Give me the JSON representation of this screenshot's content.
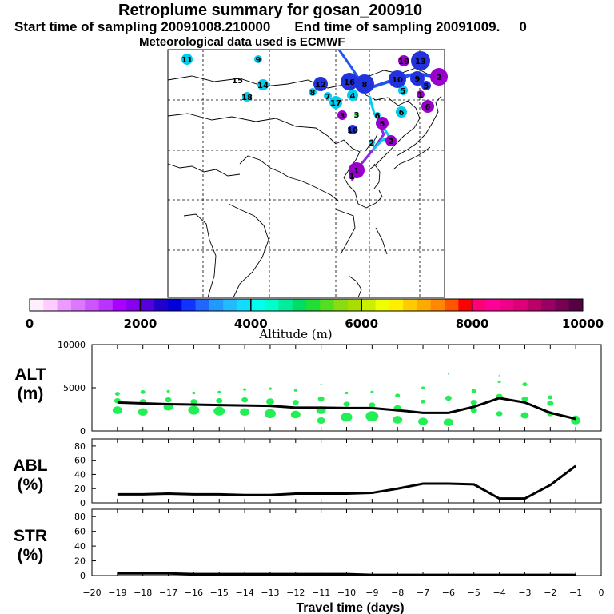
{
  "header": {
    "title": "Retroplume summary for gosan_200910",
    "start_label": "Start time of sampling 20091008.210000",
    "end_label": "End time of sampling 20091009.",
    "end_suffix": "0",
    "met_label": "Meteorological data used is ECMWF"
  },
  "map": {
    "cluster_labels": [
      "11",
      "9",
      "15",
      "14",
      "18",
      "12",
      "16",
      "8",
      "7",
      "17",
      "4",
      "3",
      "3",
      "6",
      "10",
      "2",
      "5",
      "1",
      "2",
      "5",
      "6",
      "13",
      "19",
      "10",
      "9",
      "5",
      "1",
      "6",
      "2",
      "8",
      "1"
    ],
    "colors": {
      "low": "#ee88ff",
      "mid_blue": "#2233dd",
      "cyan": "#00ccee",
      "green": "#33ee66",
      "violet": "#9900cc"
    }
  },
  "colorbar": {
    "xlabel": "Altitude (m)",
    "ticks": [
      "0",
      "2000",
      "4000",
      "6000",
      "8000",
      "10000"
    ],
    "colors": [
      "#ffeeff",
      "#ffccff",
      "#ee99ff",
      "#dd77ff",
      "#cc55ff",
      "#bb33ff",
      "#aa00ff",
      "#8800ee",
      "#5500dd",
      "#2200cc",
      "#0000dd",
      "#1133ff",
      "#2266ff",
      "#2299ff",
      "#22bbff",
      "#11ddff",
      "#00ffee",
      "#00ffcc",
      "#00ee99",
      "#00dd66",
      "#22dd33",
      "#55dd22",
      "#88dd11",
      "#aadd00",
      "#ccee00",
      "#eeff00",
      "#ffee00",
      "#ffcc00",
      "#ffaa00",
      "#ff8800",
      "#ff5500",
      "#ff0000",
      "#ff0077",
      "#ff0099",
      "#ee0088",
      "#dd0077",
      "#bb0066",
      "#990066",
      "#770055",
      "#550044"
    ]
  },
  "chart_data": [
    {
      "type": "line",
      "ylabel": "ALT",
      "yunit": "(m)",
      "ylim": [
        0,
        10000
      ],
      "yticks": [
        "0",
        "5000",
        "10000"
      ],
      "x": [
        -19,
        -18,
        -17,
        -16,
        -15,
        -14,
        -13,
        -12,
        -11,
        -10,
        -9,
        -8,
        -7,
        -6,
        -5,
        -4,
        -3,
        -2,
        -1
      ],
      "series": [
        {
          "name": "mean altitude",
          "values": [
            3300,
            3200,
            3100,
            3050,
            3000,
            2950,
            2900,
            2700,
            2700,
            2650,
            2650,
            2400,
            2100,
            2100,
            2800,
            3800,
            3300,
            2100,
            1400
          ]
        }
      ],
      "scatter_points": [
        {
          "x": -19,
          "y": 2400,
          "s": 6
        },
        {
          "x": -19,
          "y": 3500,
          "s": 4
        },
        {
          "x": -19,
          "y": 4300,
          "s": 3
        },
        {
          "x": -18,
          "y": 2200,
          "s": 6
        },
        {
          "x": -18,
          "y": 3400,
          "s": 4
        },
        {
          "x": -18,
          "y": 4500,
          "s": 3
        },
        {
          "x": -17,
          "y": 2800,
          "s": 6
        },
        {
          "x": -17,
          "y": 3600,
          "s": 4
        },
        {
          "x": -17,
          "y": 4600,
          "s": 2
        },
        {
          "x": -16,
          "y": 2400,
          "s": 7
        },
        {
          "x": -16,
          "y": 3400,
          "s": 4
        },
        {
          "x": -16,
          "y": 4400,
          "s": 2
        },
        {
          "x": -15,
          "y": 2300,
          "s": 7
        },
        {
          "x": -15,
          "y": 3500,
          "s": 4
        },
        {
          "x": -15,
          "y": 4500,
          "s": 2
        },
        {
          "x": -14,
          "y": 2200,
          "s": 6
        },
        {
          "x": -14,
          "y": 3600,
          "s": 4
        },
        {
          "x": -14,
          "y": 4800,
          "s": 2
        },
        {
          "x": -13,
          "y": 2000,
          "s": 7
        },
        {
          "x": -13,
          "y": 3400,
          "s": 5
        },
        {
          "x": -13,
          "y": 4900,
          "s": 2
        },
        {
          "x": -12,
          "y": 1900,
          "s": 6
        },
        {
          "x": -12,
          "y": 3300,
          "s": 4
        },
        {
          "x": -12,
          "y": 4700,
          "s": 2
        },
        {
          "x": -11,
          "y": 1200,
          "s": 5
        },
        {
          "x": -11,
          "y": 2400,
          "s": 6
        },
        {
          "x": -11,
          "y": 3700,
          "s": 4
        },
        {
          "x": -11,
          "y": 5400,
          "s": 1
        },
        {
          "x": -10,
          "y": 1600,
          "s": 7
        },
        {
          "x": -10,
          "y": 3100,
          "s": 4
        },
        {
          "x": -10,
          "y": 4400,
          "s": 2
        },
        {
          "x": -9,
          "y": 1700,
          "s": 8
        },
        {
          "x": -9,
          "y": 3000,
          "s": 4
        },
        {
          "x": -9,
          "y": 4500,
          "s": 2
        },
        {
          "x": -8,
          "y": 1300,
          "s": 6
        },
        {
          "x": -8,
          "y": 2600,
          "s": 5
        },
        {
          "x": -8,
          "y": 4100,
          "s": 3
        },
        {
          "x": -7,
          "y": 1100,
          "s": 6
        },
        {
          "x": -7,
          "y": 3400,
          "s": 3
        },
        {
          "x": -7,
          "y": 5000,
          "s": 2
        },
        {
          "x": -6,
          "y": 1000,
          "s": 6
        },
        {
          "x": -6,
          "y": 3800,
          "s": 4
        },
        {
          "x": -6,
          "y": 6600,
          "s": 1
        },
        {
          "x": -5,
          "y": 2400,
          "s": 4
        },
        {
          "x": -5,
          "y": 3300,
          "s": 4
        },
        {
          "x": -5,
          "y": 4600,
          "s": 3
        },
        {
          "x": -4,
          "y": 2000,
          "s": 4
        },
        {
          "x": -4,
          "y": 4000,
          "s": 4
        },
        {
          "x": -4,
          "y": 5700,
          "s": 2
        },
        {
          "x": -4,
          "y": 6400,
          "s": 1
        },
        {
          "x": -3,
          "y": 1800,
          "s": 5
        },
        {
          "x": -3,
          "y": 3700,
          "s": 4
        },
        {
          "x": -3,
          "y": 5400,
          "s": 3
        },
        {
          "x": -2,
          "y": 2000,
          "s": 4
        },
        {
          "x": -2,
          "y": 3200,
          "s": 4
        },
        {
          "x": -2,
          "y": 3900,
          "s": 3
        },
        {
          "x": -1,
          "y": 1200,
          "s": 6
        },
        {
          "x": -1,
          "y": 1500,
          "s": 4
        }
      ]
    },
    {
      "type": "line",
      "ylabel": "ABL",
      "yunit": "(%)",
      "ylim": [
        0,
        90
      ],
      "yticks": [
        "0",
        "20",
        "40",
        "60",
        "80"
      ],
      "x": [
        -19,
        -18,
        -17,
        -16,
        -15,
        -14,
        -13,
        -12,
        -11,
        -10,
        -9,
        -8,
        -7,
        -6,
        -5,
        -4,
        -3,
        -2,
        -1
      ],
      "series": [
        {
          "name": "ABL fraction",
          "values": [
            12,
            12,
            13,
            12,
            12,
            11,
            11,
            13,
            13,
            13,
            14,
            20,
            27,
            27,
            26,
            6,
            6,
            25,
            52
          ]
        }
      ]
    },
    {
      "type": "line",
      "ylabel": "STR",
      "yunit": "(%)",
      "ylim": [
        0,
        90
      ],
      "yticks": [
        "0",
        "20",
        "40",
        "60",
        "80"
      ],
      "xlabel": "Travel time (days)",
      "xticks": [
        "−20",
        "−19",
        "−18",
        "−17",
        "−16",
        "−15",
        "−14",
        "−13",
        "−12",
        "−11",
        "−10",
        "−9",
        "−8",
        "−7",
        "−6",
        "−5",
        "−4",
        "−3",
        "−2",
        "−1",
        "0"
      ],
      "x": [
        -19,
        -18,
        -17,
        -16,
        -15,
        -14,
        -13,
        -12,
        -11,
        -10,
        -9,
        -8,
        -7,
        -6,
        -5,
        -4,
        -3,
        -2,
        -1
      ],
      "series": [
        {
          "name": "stratosphere fraction",
          "values": [
            3,
            3,
            3,
            2,
            2,
            2,
            2,
            2,
            2,
            2,
            1,
            1,
            1,
            1,
            1,
            1,
            1,
            1,
            1
          ]
        }
      ]
    }
  ]
}
